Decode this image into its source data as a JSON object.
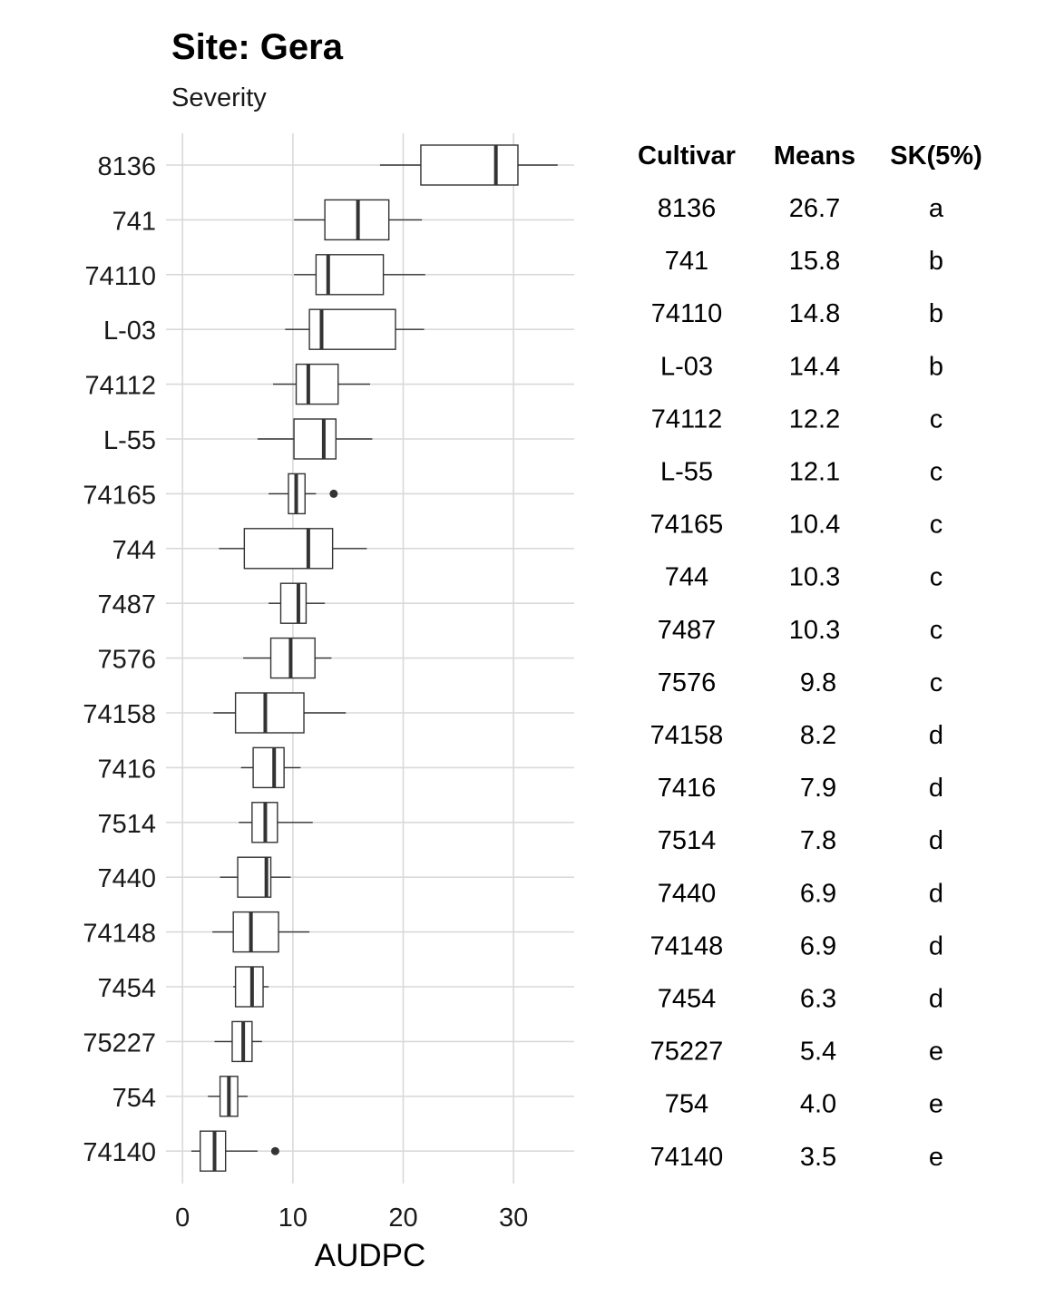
{
  "chart_data": {
    "type": "boxplot",
    "title": "Site: Gera",
    "subtitle": "Severity",
    "xlabel": "AUDPC",
    "xlim": [
      -1.5,
      35.5
    ],
    "xticks": [
      0,
      10,
      20,
      30
    ],
    "grid": true,
    "categories": [
      "8136",
      "741",
      "74110",
      "L-03",
      "74112",
      "L-55",
      "74165",
      "744",
      "7487",
      "7576",
      "74158",
      "7416",
      "7514",
      "7440",
      "74148",
      "7454",
      "75227",
      "754",
      "74140"
    ],
    "boxes": [
      {
        "label": "8136",
        "whisker_low": 17.9,
        "q1": 21.6,
        "median": 28.4,
        "q3": 30.4,
        "whisker_high": 34.0,
        "outliers": []
      },
      {
        "label": "741",
        "whisker_low": 10.1,
        "q1": 12.9,
        "median": 15.9,
        "q3": 18.7,
        "whisker_high": 21.7,
        "outliers": []
      },
      {
        "label": "74110",
        "whisker_low": 10.1,
        "q1": 12.1,
        "median": 13.2,
        "q3": 18.2,
        "whisker_high": 22.0,
        "outliers": []
      },
      {
        "label": "L-03",
        "whisker_low": 9.3,
        "q1": 11.5,
        "median": 12.6,
        "q3": 19.3,
        "whisker_high": 21.9,
        "outliers": []
      },
      {
        "label": "74112",
        "whisker_low": 8.2,
        "q1": 10.3,
        "median": 11.4,
        "q3": 14.1,
        "whisker_high": 17.0,
        "outliers": []
      },
      {
        "label": "L-55",
        "whisker_low": 6.8,
        "q1": 10.1,
        "median": 12.8,
        "q3": 13.9,
        "whisker_high": 17.2,
        "outliers": []
      },
      {
        "label": "74165",
        "whisker_low": 7.8,
        "q1": 9.6,
        "median": 10.3,
        "q3": 11.1,
        "whisker_high": 12.1,
        "outliers": [
          13.7
        ]
      },
      {
        "label": "744",
        "whisker_low": 3.3,
        "q1": 5.6,
        "median": 11.4,
        "q3": 13.6,
        "whisker_high": 16.7,
        "outliers": []
      },
      {
        "label": "7487",
        "whisker_low": 7.8,
        "q1": 8.9,
        "median": 10.5,
        "q3": 11.2,
        "whisker_high": 12.9,
        "outliers": []
      },
      {
        "label": "7576",
        "whisker_low": 5.5,
        "q1": 8.0,
        "median": 9.8,
        "q3": 12.0,
        "whisker_high": 13.5,
        "outliers": []
      },
      {
        "label": "74158",
        "whisker_low": 2.8,
        "q1": 4.8,
        "median": 7.5,
        "q3": 11.0,
        "whisker_high": 14.8,
        "outliers": []
      },
      {
        "label": "7416",
        "whisker_low": 5.3,
        "q1": 6.4,
        "median": 8.3,
        "q3": 9.2,
        "whisker_high": 10.7,
        "outliers": []
      },
      {
        "label": "7514",
        "whisker_low": 5.1,
        "q1": 6.3,
        "median": 7.5,
        "q3": 8.6,
        "whisker_high": 11.8,
        "outliers": []
      },
      {
        "label": "7440",
        "whisker_low": 3.4,
        "q1": 5.0,
        "median": 7.6,
        "q3": 8.0,
        "whisker_high": 9.8,
        "outliers": []
      },
      {
        "label": "74148",
        "whisker_low": 2.7,
        "q1": 4.6,
        "median": 6.2,
        "q3": 8.7,
        "whisker_high": 11.5,
        "outliers": []
      },
      {
        "label": "7454",
        "whisker_low": 4.6,
        "q1": 4.8,
        "median": 6.3,
        "q3": 7.3,
        "whisker_high": 7.8,
        "outliers": []
      },
      {
        "label": "75227",
        "whisker_low": 2.9,
        "q1": 4.5,
        "median": 5.5,
        "q3": 6.3,
        "whisker_high": 7.2,
        "outliers": []
      },
      {
        "label": "754",
        "whisker_low": 2.3,
        "q1": 3.4,
        "median": 4.2,
        "q3": 5.0,
        "whisker_high": 5.9,
        "outliers": []
      },
      {
        "label": "74140",
        "whisker_low": 0.8,
        "q1": 1.6,
        "median": 2.9,
        "q3": 3.9,
        "whisker_high": 6.8,
        "outliers": [
          8.4
        ]
      }
    ],
    "table": {
      "headers": [
        "Cultivar",
        "Means",
        "SK(5%)"
      ],
      "rows": [
        [
          "8136",
          "26.7",
          "a"
        ],
        [
          "741",
          "15.8",
          "b"
        ],
        [
          "74110",
          "14.8",
          "b"
        ],
        [
          "L-03",
          "14.4",
          "b"
        ],
        [
          "74112",
          "12.2",
          "c"
        ],
        [
          "L-55",
          "12.1",
          "c"
        ],
        [
          "74165",
          "10.4",
          "c"
        ],
        [
          "744",
          "10.3",
          "c"
        ],
        [
          "7487",
          "10.3",
          "c"
        ],
        [
          "7576",
          "9.8",
          "c"
        ],
        [
          "74158",
          "8.2",
          "d"
        ],
        [
          "7416",
          "7.9",
          "d"
        ],
        [
          "7514",
          "7.8",
          "d"
        ],
        [
          "7440",
          "6.9",
          "d"
        ],
        [
          "74148",
          "6.9",
          "d"
        ],
        [
          "7454",
          "6.3",
          "d"
        ],
        [
          "75227",
          "5.4",
          "e"
        ],
        [
          "754",
          "4.0",
          "e"
        ],
        [
          "74140",
          "3.5",
          "e"
        ]
      ]
    },
    "colors": {
      "box_stroke": "#333333",
      "median": "#333333",
      "grid": "#d9d9d9",
      "outlier": "#333333"
    }
  }
}
